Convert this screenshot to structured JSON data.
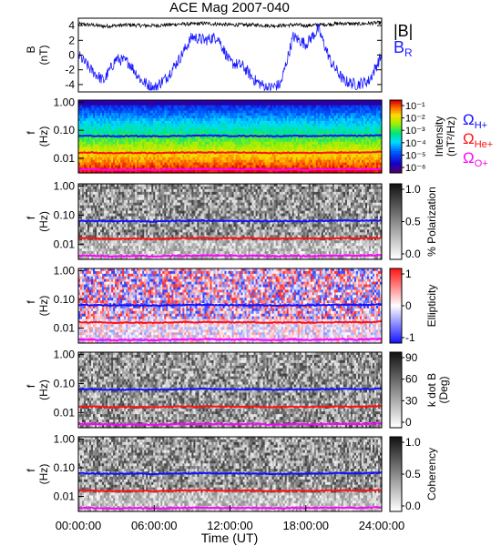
{
  "title": "ACE Mag 2007-040",
  "xlabel": "Time (UT)",
  "xticks": [
    "00:00:00",
    "06:00:00",
    "12:00:00",
    "18:00:00",
    "24:00:00"
  ],
  "colors": {
    "B_total": "#000000",
    "B_R": "#1a1aff",
    "H": "#1010ff",
    "He": "#ff1010",
    "O": "#ff00ff"
  },
  "chart_data": [
    {
      "type": "line",
      "title": "",
      "ylabel": "B",
      "yunit": "(nT)",
      "ylim": [
        -5,
        5
      ],
      "yticks": [
        "4",
        "2",
        "0",
        "-2",
        "-4"
      ],
      "x": [
        0,
        1,
        2,
        3,
        4,
        5,
        6,
        7,
        8,
        9,
        10,
        11,
        12,
        13,
        14,
        15,
        16,
        17,
        18,
        19,
        20,
        21,
        22,
        23,
        24
      ],
      "series": [
        {
          "name": "|B|",
          "values": [
            4.2,
            4.1,
            3.9,
            4.0,
            4.1,
            4.0,
            4.0,
            4.1,
            4.2,
            4.2,
            4.3,
            4.2,
            4.1,
            4.1,
            4.1,
            4.0,
            4.0,
            4.1,
            4.0,
            4.1,
            4.2,
            4.3,
            4.2,
            4.3,
            4.4
          ]
        },
        {
          "name": "B_R",
          "values": [
            0.0,
            -2.0,
            -3.5,
            -0.5,
            -1.0,
            -3.5,
            -4.5,
            -3.0,
            -0.5,
            2.5,
            2.0,
            2.5,
            -1.0,
            -1.5,
            -3.5,
            -4.5,
            -4.0,
            2.5,
            1.5,
            3.5,
            -1.0,
            -3.5,
            -4.0,
            -3.5,
            0.0
          ]
        }
      ]
    },
    {
      "type": "heatmap",
      "title": "",
      "ylabel": "f",
      "yunit": "(Hz)",
      "ylim": [
        0.003,
        1.2
      ],
      "yscale": "log",
      "yticks": [
        "1.00",
        "0.10",
        "0.01"
      ],
      "colorbar": {
        "label": "Intensity",
        "unit": "(nT²/Hz)",
        "ticks": [
          "10⁻¹",
          "10⁻²",
          "10⁻³",
          "10⁻⁴",
          "10⁻⁵",
          "10⁻⁶"
        ]
      },
      "legend": [
        {
          "name": "ΩH+",
          "sym": "Ω",
          "sub": "H+",
          "color": "#1010ff"
        },
        {
          "name": "ΩHe+",
          "sym": "Ω",
          "sub": "He+",
          "color": "#ff1010"
        },
        {
          "name": "ΩO+",
          "sym": "Ω",
          "sub": "O+",
          "color": "#ff00ff"
        }
      ]
    },
    {
      "type": "heatmap",
      "title": "",
      "ylabel": "f",
      "yunit": "(Hz)",
      "ylim": [
        0.003,
        1.2
      ],
      "yscale": "log",
      "yticks": [
        "1.00",
        "0.10",
        "0.01"
      ],
      "colorbar": {
        "label": "% Polarization",
        "unit": "",
        "ticks": [
          "1.0",
          "0.5",
          "0.0"
        ]
      }
    },
    {
      "type": "heatmap",
      "title": "",
      "ylabel": "f",
      "yunit": "(Hz)",
      "ylim": [
        0.003,
        1.2
      ],
      "yscale": "log",
      "yticks": [
        "1.00",
        "0.10",
        "0.01"
      ],
      "colorbar": {
        "label": "Ellipticity",
        "unit": "",
        "ticks": [
          "1",
          "0",
          "-1"
        ]
      }
    },
    {
      "type": "heatmap",
      "title": "",
      "ylabel": "f",
      "yunit": "(Hz)",
      "ylim": [
        0.003,
        1.2
      ],
      "yscale": "log",
      "yticks": [
        "1.00",
        "0.10",
        "0.01"
      ],
      "colorbar": {
        "label": "k dot B",
        "unit": "(Deg)",
        "ticks": [
          "90",
          "60",
          "30",
          "0"
        ]
      }
    },
    {
      "type": "heatmap",
      "title": "",
      "ylabel": "f",
      "yunit": "(Hz)",
      "ylim": [
        0.003,
        1.2
      ],
      "yscale": "log",
      "yticks": [
        "1.00",
        "0.10",
        "0.01"
      ],
      "colorbar": {
        "label": "Coherency",
        "unit": "",
        "ticks": [
          "1.0",
          "0.5",
          "0.0"
        ]
      }
    }
  ],
  "gyro": {
    "x": [
      0,
      1,
      2,
      3,
      4,
      5,
      6,
      7,
      8,
      9,
      10,
      11,
      12,
      13,
      14,
      15,
      16,
      17,
      18,
      19,
      20,
      21,
      22,
      23,
      24
    ],
    "H": [
      0.064,
      0.063,
      0.062,
      0.061,
      0.062,
      0.062,
      0.061,
      0.062,
      0.063,
      0.064,
      0.065,
      0.064,
      0.063,
      0.063,
      0.063,
      0.062,
      0.062,
      0.063,
      0.062,
      0.063,
      0.064,
      0.065,
      0.064,
      0.065,
      0.067
    ],
    "He": [
      0.016,
      0.016,
      0.0155,
      0.0152,
      0.0155,
      0.0155,
      0.0152,
      0.0155,
      0.016,
      0.016,
      0.0163,
      0.016,
      0.016,
      0.016,
      0.016,
      0.0155,
      0.0155,
      0.016,
      0.0155,
      0.016,
      0.016,
      0.0163,
      0.016,
      0.0163,
      0.0168
    ],
    "O": [
      0.004,
      0.004,
      0.0039,
      0.0038,
      0.0039,
      0.0039,
      0.0038,
      0.0039,
      0.004,
      0.004,
      0.0041,
      0.004,
      0.004,
      0.004,
      0.004,
      0.0039,
      0.0039,
      0.004,
      0.0039,
      0.004,
      0.004,
      0.0041,
      0.004,
      0.0041,
      0.0042
    ]
  }
}
